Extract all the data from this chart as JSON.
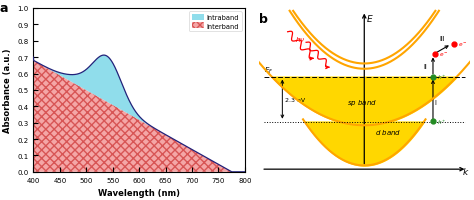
{
  "panel_a": {
    "wavelength_start": 400,
    "wavelength_end": 800,
    "interband_color": "#f08080",
    "interband_hatch": "xxxx",
    "intraband_color": "#7dd8e8",
    "total_line_color": "#22227a",
    "xlabel": "Wavelength (nm)",
    "ylabel": "Absorbance (a.u.)",
    "xlim": [
      400,
      800
    ],
    "ylim": [
      0,
      1.0
    ],
    "yticks": [
      0.0,
      0.1,
      0.2,
      0.3,
      0.4,
      0.5,
      0.6,
      0.7,
      0.8,
      0.9,
      1.0
    ],
    "xticks": [
      400,
      450,
      500,
      550,
      600,
      650,
      700,
      750,
      800
    ],
    "label_a": "a",
    "legend_intraband": "Intraband",
    "legend_interband": "Interband"
  },
  "panel_b": {
    "label_b": "b",
    "band_color": "#FFD700",
    "band_edge_color": "#FFA500",
    "sp_band_label": "sp band",
    "d_band_label": "d band",
    "ef_label": "E_F",
    "energy_label": "2.3 eV",
    "axis_e_label": "E",
    "axis_k_label": "k",
    "EF_y": 0.3,
    "d_band_top_y": -0.55,
    "xlim": [
      -2.0,
      2.0
    ],
    "ylim": [
      -1.5,
      1.6
    ]
  }
}
